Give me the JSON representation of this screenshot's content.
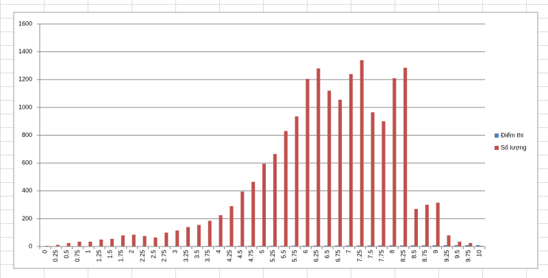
{
  "chart_data": {
    "type": "bar",
    "categories": [
      "0",
      "0.25",
      "0.5",
      "0.75",
      "1",
      "1.25",
      "1.5",
      "1.75",
      "2",
      "2.25",
      "2.5",
      "2.75",
      "3",
      "3.25",
      "3.5",
      "3.75",
      "4",
      "4.25",
      "4.5",
      "4.75",
      "5",
      "5.25",
      "5.5",
      "5.75",
      "6",
      "6.25",
      "6.5",
      "6.75",
      "7",
      "7.25",
      "7.5",
      "7.75",
      "8",
      "8.25",
      "8.5",
      "8.75",
      "9",
      "9.25",
      "9.5",
      "9.75",
      "10"
    ],
    "series": [
      {
        "name": "Điểm thi",
        "color": "#4f81bd",
        "values": [
          0,
          0.25,
          0.5,
          0.75,
          1,
          1.25,
          1.5,
          1.75,
          2,
          2.25,
          2.5,
          2.75,
          3,
          3.25,
          3.5,
          3.75,
          4,
          4.25,
          4.5,
          4.75,
          5,
          5.25,
          5.5,
          5.75,
          6,
          6.25,
          6.5,
          6.75,
          7,
          7.25,
          7.5,
          7.75,
          8,
          8.25,
          8.5,
          8.75,
          9,
          9.25,
          9.5,
          9.75,
          10
        ]
      },
      {
        "name": "Số lượng",
        "color": "#c0504d",
        "values": [
          5,
          12,
          25,
          35,
          35,
          50,
          55,
          80,
          85,
          75,
          65,
          100,
          115,
          140,
          155,
          185,
          225,
          290,
          395,
          465,
          595,
          665,
          830,
          935,
          1205,
          1280,
          1120,
          1055,
          1240,
          1340,
          965,
          900,
          1210,
          1285,
          270,
          300,
          315,
          80,
          35,
          25,
          5
        ]
      }
    ],
    "ylim": [
      0,
      1600
    ],
    "yticks": [
      0,
      200,
      400,
      600,
      800,
      1000,
      1200,
      1400,
      1600
    ],
    "grid": true,
    "legend": "right"
  }
}
